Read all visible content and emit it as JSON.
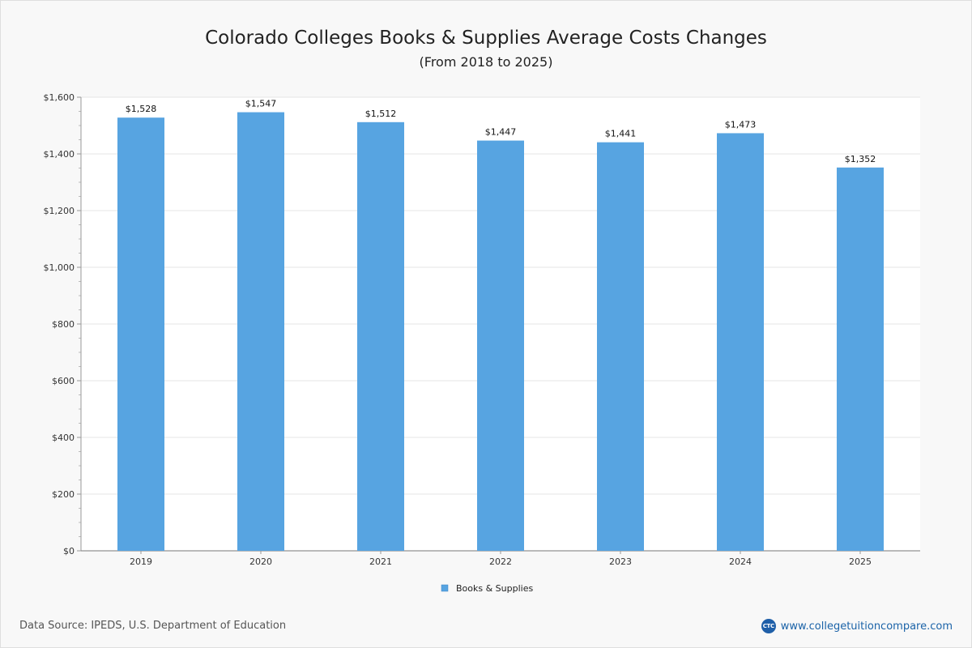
{
  "chart_data": {
    "type": "bar",
    "title": "Colorado Colleges  Books & Supplies Average Costs Changes",
    "subtitle": "(From 2018 to 2025)",
    "categories": [
      "2019",
      "2020",
      "2021",
      "2022",
      "2023",
      "2024",
      "2025"
    ],
    "series": [
      {
        "name": "Books & Supplies",
        "values": [
          1528,
          1547,
          1512,
          1447,
          1441,
          1473,
          1352
        ],
        "color": "#57a4e1"
      }
    ],
    "data_labels": [
      "$1,528",
      "$1,547",
      "$1,512",
      "$1,447",
      "$1,441",
      "$1,473",
      "$1,352"
    ],
    "y_ticks": [
      0,
      200,
      400,
      600,
      800,
      1000,
      1200,
      1400,
      1600
    ],
    "y_tick_labels": [
      "$0",
      "$200",
      "$400",
      "$600",
      "$800",
      "$1,000",
      "$1,200",
      "$1,400",
      "$1,600"
    ],
    "ylim": [
      0,
      1600
    ],
    "xlabel": "",
    "ylabel": "",
    "grid": true,
    "legend_position": "bottom-center"
  },
  "footer": {
    "source": "Data Source: IPEDS, U.S. Department of Education",
    "brand_text": "www.collegetuitioncompare.com",
    "brand_logo": "CTC"
  }
}
